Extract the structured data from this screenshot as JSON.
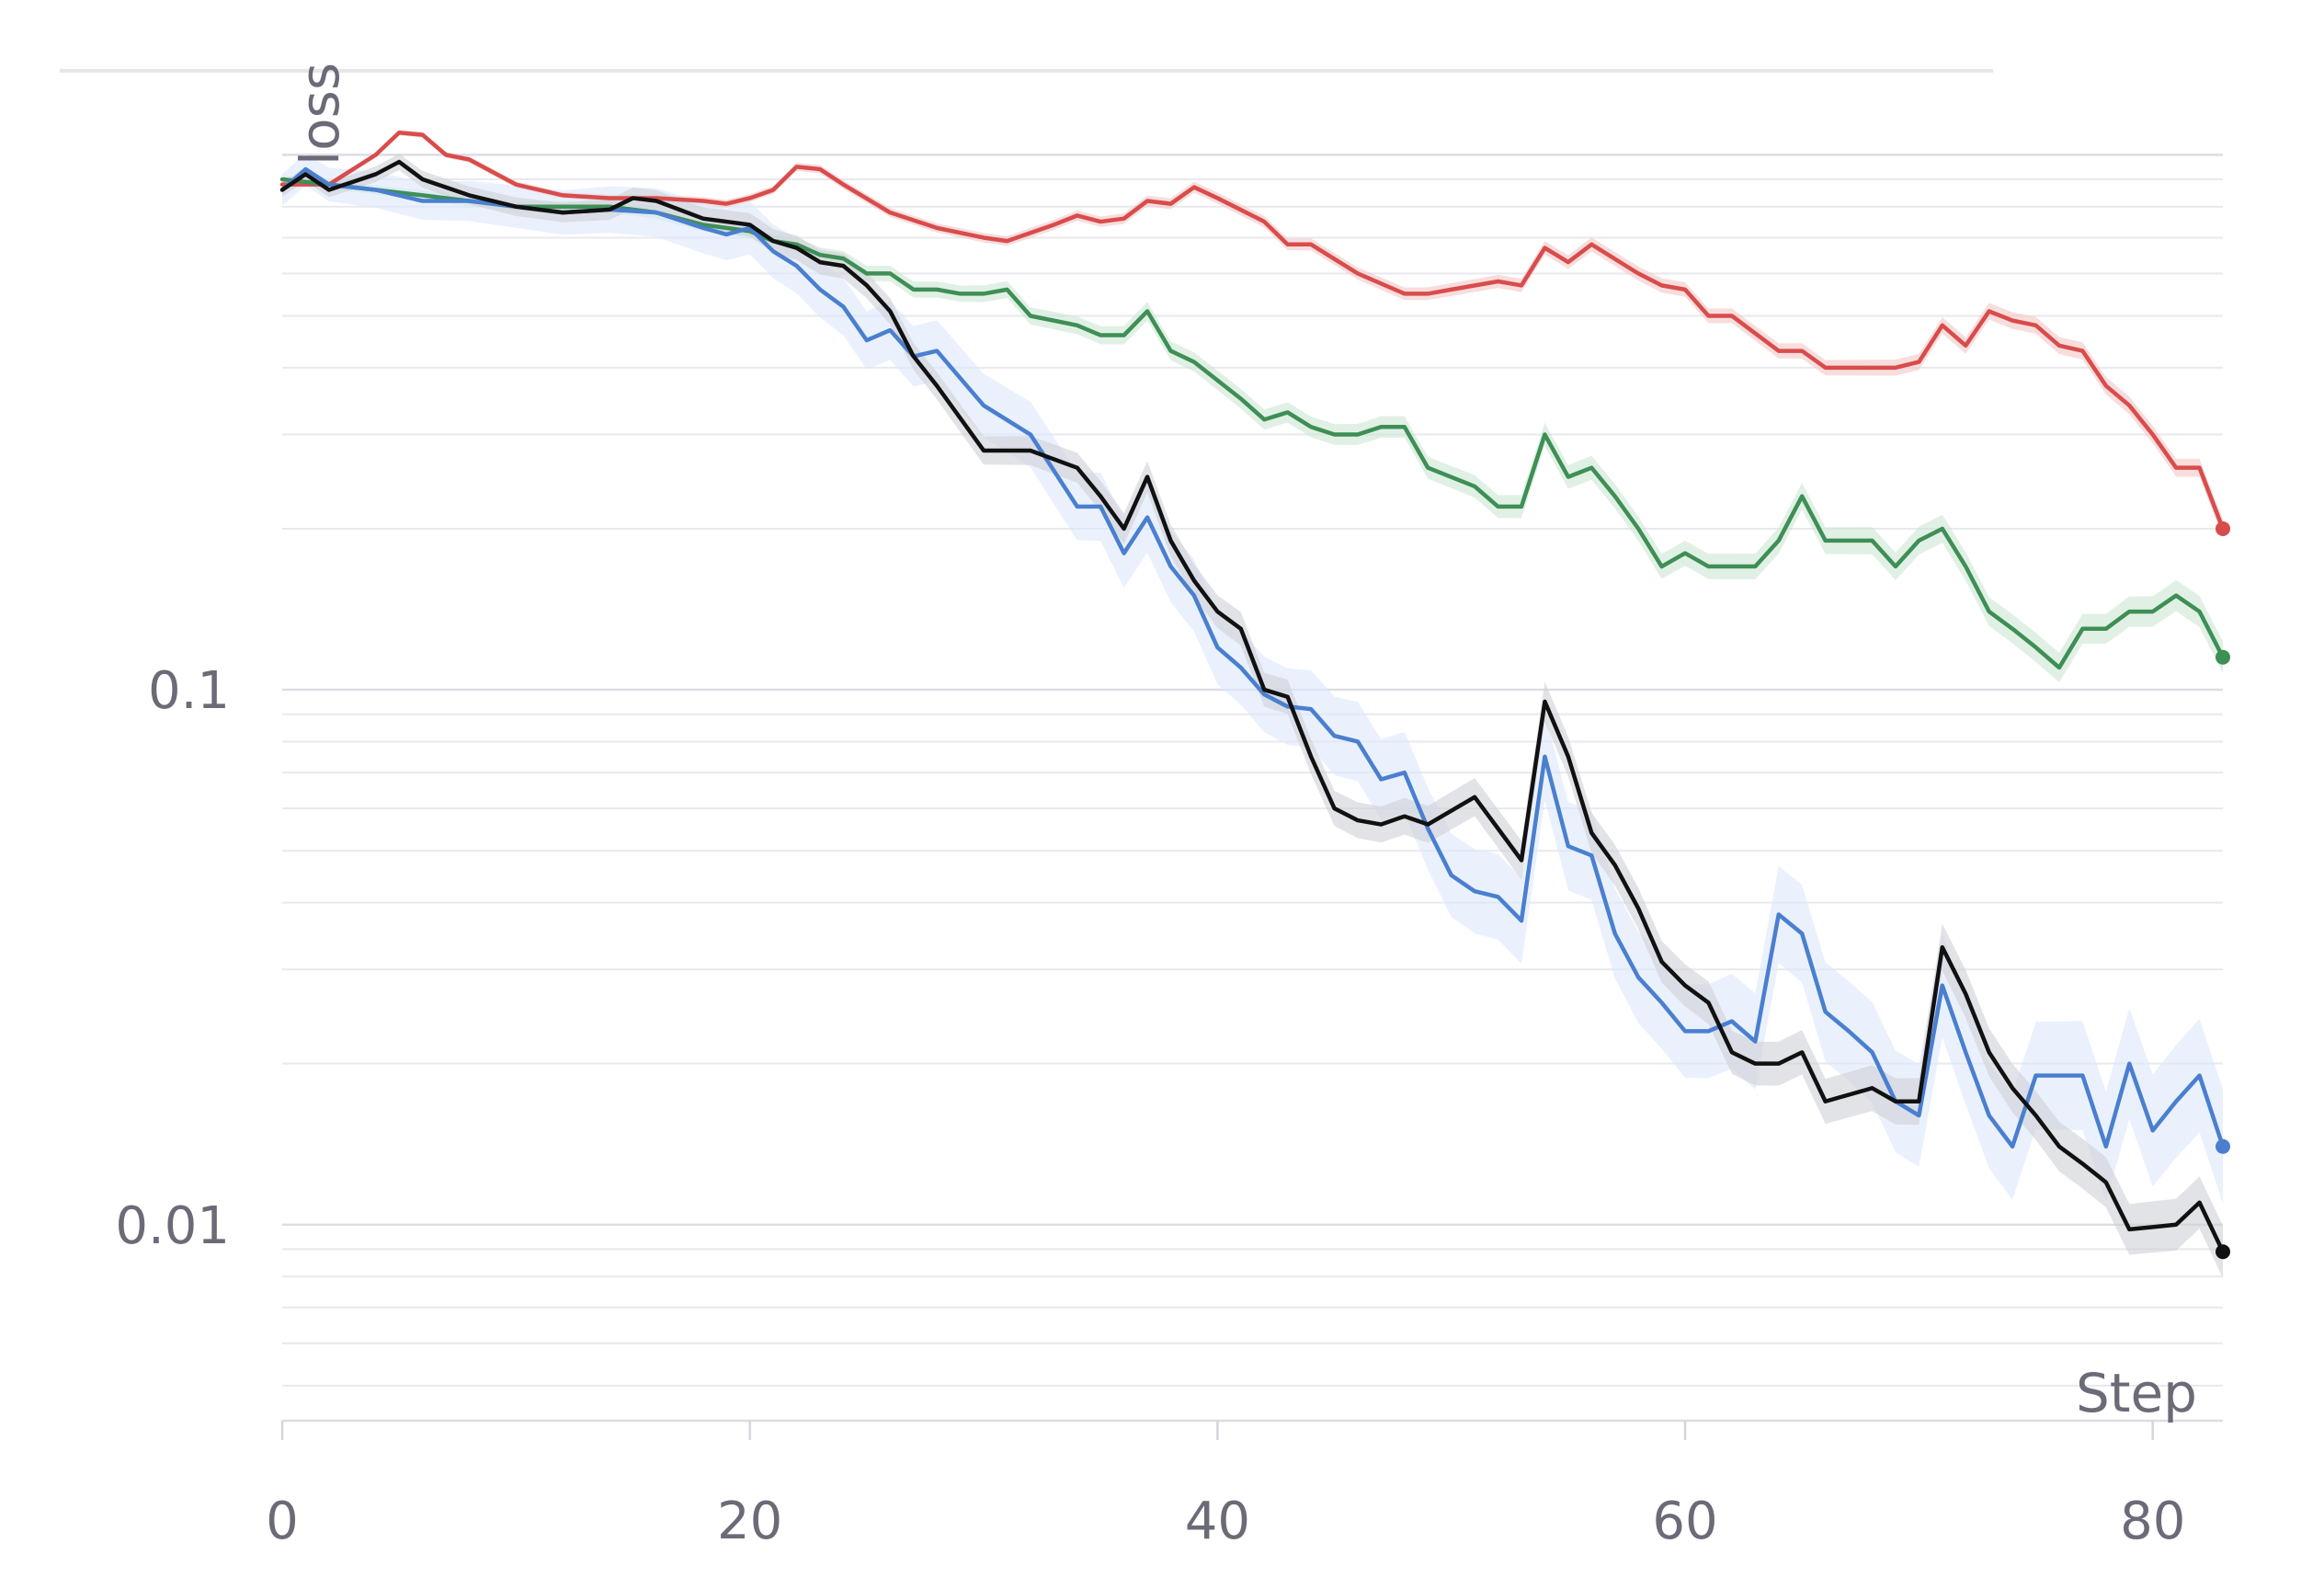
{
  "chart_data": {
    "type": "line",
    "xlabel": "Step",
    "ylabel": "loss",
    "x_ticks": [
      0,
      20,
      40,
      60,
      80
    ],
    "y_ticks": [
      {
        "value": 0.1,
        "label": "0.1"
      },
      {
        "value": 0.01,
        "label": "0.01"
      }
    ],
    "x_range": [
      0,
      83
    ],
    "y_range": [
      0.0043,
      1.25
    ],
    "y_scale": "log",
    "grid": true,
    "legend": "none",
    "series": [
      {
        "color": "#d94c4c",
        "band_color": "#f3c7c7",
        "x": [
          0,
          2,
          4,
          5,
          6,
          7,
          8,
          10,
          12,
          14,
          16,
          18,
          19,
          20,
          21,
          22,
          23,
          24,
          26,
          28,
          30,
          31,
          33,
          34,
          35,
          36,
          37,
          38,
          39,
          40,
          42,
          43,
          44,
          46,
          48,
          49,
          50,
          52,
          53,
          54,
          55,
          56,
          58,
          59,
          60,
          61,
          62,
          64,
          65,
          66,
          68,
          69,
          70,
          71,
          72,
          73,
          74,
          75,
          76,
          77,
          78,
          79,
          80,
          81,
          82,
          83
        ],
        "values": [
          0.88,
          0.88,
          1.0,
          1.1,
          1.09,
          1.0,
          0.98,
          0.88,
          0.84,
          0.83,
          0.83,
          0.82,
          0.81,
          0.83,
          0.86,
          0.95,
          0.94,
          0.88,
          0.78,
          0.73,
          0.7,
          0.69,
          0.74,
          0.77,
          0.75,
          0.76,
          0.82,
          0.81,
          0.87,
          0.83,
          0.75,
          0.68,
          0.68,
          0.6,
          0.55,
          0.55,
          0.56,
          0.58,
          0.57,
          0.67,
          0.63,
          0.68,
          0.6,
          0.57,
          0.56,
          0.5,
          0.5,
          0.43,
          0.43,
          0.4,
          0.4,
          0.4,
          0.41,
          0.48,
          0.44,
          0.51,
          0.49,
          0.48,
          0.44,
          0.43,
          0.37,
          0.34,
          0.3,
          0.26,
          0.26,
          0.2
        ],
        "band": 0.04
      },
      {
        "color": "#3e8f55",
        "band_color": "#cde6d4",
        "x": [
          0,
          2,
          4,
          6,
          8,
          10,
          12,
          14,
          16,
          18,
          19,
          20,
          21,
          22,
          23,
          24,
          25,
          26,
          27,
          28,
          29,
          30,
          31,
          32,
          34,
          35,
          36,
          37,
          38,
          39,
          41,
          42,
          43,
          44,
          45,
          46,
          47,
          48,
          49,
          51,
          52,
          53,
          54,
          55,
          56,
          57,
          58,
          59,
          60,
          61,
          62,
          63,
          64,
          65,
          66,
          68,
          69,
          70,
          71,
          72,
          73,
          74,
          75,
          76,
          77,
          78,
          79,
          80,
          81,
          82,
          83
        ],
        "values": [
          0.9,
          0.88,
          0.86,
          0.84,
          0.82,
          0.8,
          0.8,
          0.8,
          0.78,
          0.74,
          0.73,
          0.72,
          0.69,
          0.68,
          0.65,
          0.64,
          0.6,
          0.6,
          0.56,
          0.56,
          0.55,
          0.55,
          0.56,
          0.5,
          0.48,
          0.46,
          0.46,
          0.51,
          0.43,
          0.41,
          0.35,
          0.32,
          0.33,
          0.31,
          0.3,
          0.3,
          0.31,
          0.31,
          0.26,
          0.24,
          0.22,
          0.22,
          0.3,
          0.25,
          0.26,
          0.23,
          0.2,
          0.17,
          0.18,
          0.17,
          0.17,
          0.17,
          0.19,
          0.23,
          0.19,
          0.19,
          0.17,
          0.19,
          0.2,
          0.17,
          0.14,
          0.13,
          0.12,
          0.11,
          0.13,
          0.13,
          0.14,
          0.14,
          0.15,
          0.14,
          0.115
        ],
        "band": 0.07
      },
      {
        "color": "#4a7fd0",
        "band_color": "#dce8fb",
        "x": [
          0,
          1,
          2,
          4,
          6,
          8,
          10,
          12,
          14,
          16,
          18,
          19,
          20,
          21,
          22,
          23,
          24,
          25,
          26,
          27,
          28,
          30,
          32,
          34,
          35,
          36,
          37,
          38,
          39,
          40,
          41,
          42,
          43,
          44,
          45,
          46,
          47,
          48,
          49,
          50,
          51,
          52,
          53,
          54,
          55,
          56,
          57,
          58,
          59,
          60,
          61,
          62,
          63,
          64,
          65,
          66,
          67,
          68,
          69,
          70,
          71,
          72,
          73,
          74,
          75,
          76,
          77,
          78,
          79,
          80,
          81,
          82,
          83
        ],
        "values": [
          0.86,
          0.94,
          0.88,
          0.86,
          0.82,
          0.82,
          0.8,
          0.78,
          0.79,
          0.78,
          0.73,
          0.71,
          0.73,
          0.66,
          0.62,
          0.56,
          0.52,
          0.45,
          0.47,
          0.42,
          0.43,
          0.34,
          0.3,
          0.22,
          0.22,
          0.18,
          0.21,
          0.17,
          0.15,
          0.12,
          0.11,
          0.098,
          0.093,
          0.092,
          0.082,
          0.08,
          0.068,
          0.07,
          0.055,
          0.045,
          0.042,
          0.041,
          0.037,
          0.075,
          0.051,
          0.049,
          0.035,
          0.029,
          0.026,
          0.023,
          0.023,
          0.024,
          0.022,
          0.038,
          0.035,
          0.025,
          0.023,
          0.021,
          0.017,
          0.016,
          0.028,
          0.021,
          0.016,
          0.014,
          0.019,
          0.019,
          0.019,
          0.014,
          0.02,
          0.015,
          0.017,
          0.019,
          0.014
        ],
        "band": 0.28
      },
      {
        "color": "#111111",
        "band_color": "#cfd0d5",
        "x": [
          0,
          1,
          2,
          4,
          5,
          6,
          8,
          10,
          12,
          14,
          15,
          16,
          18,
          19,
          20,
          21,
          22,
          23,
          24,
          25,
          26,
          27,
          28,
          30,
          31,
          32,
          34,
          35,
          36,
          37,
          38,
          39,
          40,
          41,
          42,
          43,
          44,
          45,
          46,
          47,
          48,
          49,
          51,
          52,
          53,
          54,
          55,
          56,
          57,
          58,
          59,
          60,
          61,
          62,
          63,
          64,
          65,
          66,
          68,
          69,
          70,
          71,
          72,
          73,
          74,
          75,
          76,
          77,
          78,
          79,
          80,
          81,
          82,
          83
        ],
        "values": [
          0.86,
          0.92,
          0.86,
          0.92,
          0.97,
          0.9,
          0.84,
          0.8,
          0.78,
          0.79,
          0.83,
          0.82,
          0.76,
          0.75,
          0.74,
          0.69,
          0.67,
          0.63,
          0.62,
          0.57,
          0.51,
          0.42,
          0.37,
          0.28,
          0.28,
          0.28,
          0.26,
          0.23,
          0.2,
          0.25,
          0.19,
          0.16,
          0.14,
          0.13,
          0.1,
          0.097,
          0.075,
          0.06,
          0.057,
          0.056,
          0.058,
          0.056,
          0.063,
          0.055,
          0.048,
          0.095,
          0.075,
          0.054,
          0.047,
          0.039,
          0.031,
          0.028,
          0.026,
          0.021,
          0.02,
          0.02,
          0.021,
          0.017,
          0.018,
          0.017,
          0.017,
          0.033,
          0.027,
          0.021,
          0.018,
          0.016,
          0.014,
          0.013,
          0.012,
          0.0098,
          0.0099,
          0.01,
          0.011,
          0.0089
        ],
        "band": 0.12
      }
    ]
  }
}
